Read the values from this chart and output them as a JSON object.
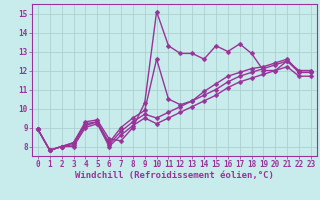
{
  "title": "",
  "xlabel": "Windchill (Refroidissement éolien,°C)",
  "ylabel": "",
  "bg_color": "#c8ecec",
  "grid_color": "#a8cccc",
  "line_color": "#993399",
  "xlim": [
    -0.5,
    23.5
  ],
  "ylim": [
    7.5,
    15.5
  ],
  "xticks": [
    0,
    1,
    2,
    3,
    4,
    5,
    6,
    7,
    8,
    9,
    10,
    11,
    12,
    13,
    14,
    15,
    16,
    17,
    18,
    19,
    20,
    21,
    22,
    23
  ],
  "yticks": [
    8,
    9,
    10,
    11,
    12,
    13,
    14,
    15
  ],
  "series": [
    [
      8.9,
      7.8,
      8.0,
      8.2,
      9.3,
      9.4,
      8.4,
      8.3,
      9.0,
      10.3,
      15.1,
      13.3,
      12.9,
      12.9,
      12.6,
      13.3,
      13.0,
      13.4,
      12.9,
      12.0,
      12.0,
      12.5,
      12.0,
      12.0
    ],
    [
      8.9,
      7.8,
      8.0,
      8.2,
      9.2,
      9.3,
      8.2,
      9.0,
      9.5,
      9.9,
      12.6,
      10.5,
      10.2,
      10.4,
      10.9,
      11.3,
      11.7,
      11.9,
      12.1,
      12.2,
      12.4,
      12.6,
      11.9,
      11.9
    ],
    [
      8.9,
      7.8,
      8.0,
      8.1,
      9.1,
      9.3,
      8.1,
      8.8,
      9.3,
      9.7,
      9.5,
      9.8,
      10.1,
      10.4,
      10.7,
      11.0,
      11.4,
      11.7,
      11.9,
      12.1,
      12.3,
      12.5,
      11.9,
      11.9
    ],
    [
      8.9,
      7.8,
      8.0,
      8.0,
      9.0,
      9.2,
      8.0,
      8.6,
      9.1,
      9.5,
      9.2,
      9.5,
      9.8,
      10.1,
      10.4,
      10.7,
      11.1,
      11.4,
      11.6,
      11.8,
      12.0,
      12.2,
      11.7,
      11.7
    ]
  ],
  "xlabel_fontsize": 6.5,
  "tick_fontsize": 5.5,
  "line_width": 1.0,
  "marker": "D",
  "marker_size": 2.5
}
